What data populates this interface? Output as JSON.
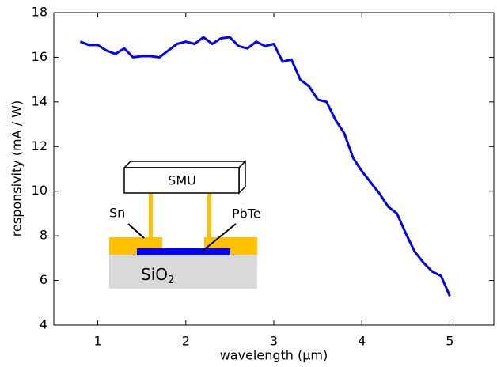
{
  "chart_data": {
    "type": "line",
    "x_label": "wavelength (μm)",
    "y_label": "responsivity (mA / W)",
    "x": [
      0.8,
      0.9,
      1.0,
      1.1,
      1.2,
      1.3,
      1.4,
      1.5,
      1.6,
      1.7,
      1.8,
      1.9,
      2.0,
      2.1,
      2.2,
      2.3,
      2.4,
      2.5,
      2.6,
      2.7,
      2.8,
      2.9,
      3.0,
      3.1,
      3.2,
      3.3,
      3.4,
      3.5,
      3.6,
      3.7,
      3.8,
      3.9,
      4.0,
      4.1,
      4.2,
      4.3,
      4.4,
      4.5,
      4.6,
      4.7,
      4.8,
      4.9,
      5.0
    ],
    "series": [
      {
        "color": "#0000ff",
        "values": [
          16.7,
          16.55,
          16.55,
          16.3,
          16.15,
          16.4,
          16.0,
          16.05,
          16.05,
          16.0,
          16.3,
          16.6,
          16.7,
          16.6,
          16.9,
          16.6,
          16.85,
          16.9,
          16.5,
          16.4,
          16.7,
          16.5,
          16.6,
          15.8,
          15.9,
          15.0,
          14.7,
          14.1,
          14.0,
          13.2,
          12.6,
          11.5,
          10.9,
          10.4,
          9.9,
          9.3,
          9.0,
          8.1,
          7.3,
          6.8,
          6.4,
          6.2,
          5.3
        ]
      }
    ],
    "xlim": [
      0.5,
      5.5
    ],
    "xticks": [
      1,
      2,
      3,
      4,
      5
    ],
    "ylim": [
      4,
      18
    ],
    "yticks": [
      4,
      6,
      8,
      10,
      12,
      14,
      16,
      18
    ],
    "inset": {
      "smu": "SMU",
      "contact": "Sn",
      "film": "PbTe",
      "substrate": {
        "text": "SiO",
        "subscript": "2"
      }
    }
  }
}
